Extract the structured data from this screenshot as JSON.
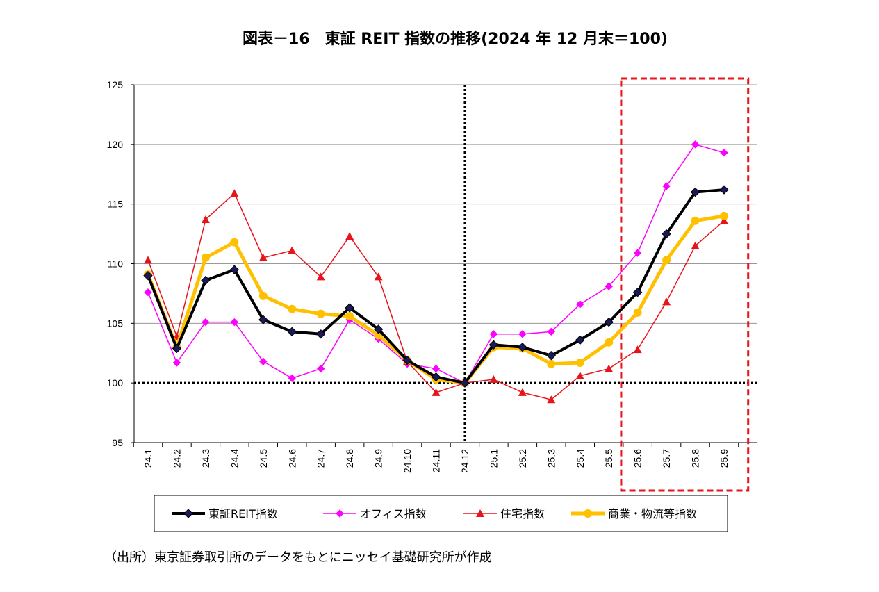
{
  "chart_data": {
    "type": "line",
    "title": "図表－16　東証 REIT 指数の推移(2024 年 12 月末＝100)",
    "source": "（出所）東京証券取引所のデータをもとにニッセイ基礎研究所が作成",
    "categories": [
      "24.1",
      "24.2",
      "24.3",
      "24.4",
      "24.5",
      "24.6",
      "24.7",
      "24.8",
      "24.9",
      "24.10",
      "24.11",
      "24.12",
      "25.1",
      "25.2",
      "25.3",
      "25.4",
      "25.5",
      "25.6",
      "25.7",
      "25.8",
      "25.9"
    ],
    "ylim": [
      95,
      125
    ],
    "yticks": [
      95,
      100,
      105,
      110,
      115,
      120,
      125
    ],
    "grid": "horizontal",
    "legend_position": "bottom",
    "reference_lines": {
      "y": 100,
      "x": "24.12"
    },
    "highlight_range": [
      "25.6",
      "25.9"
    ],
    "series": [
      {
        "name": "東証REIT指数",
        "color": "#000000",
        "marker": "diamond",
        "marker_color": "#1a1a5a",
        "values": [
          109.0,
          102.9,
          108.6,
          109.5,
          105.3,
          104.3,
          104.1,
          106.3,
          104.5,
          101.9,
          100.5,
          100.0,
          103.2,
          103.0,
          102.3,
          103.6,
          105.1,
          107.6,
          112.5,
          116.0,
          116.2
        ]
      },
      {
        "name": "オフィス指数",
        "color": "#ff00ff",
        "marker": "diamond",
        "values": [
          107.6,
          101.7,
          105.1,
          105.1,
          101.8,
          100.4,
          101.2,
          105.3,
          103.7,
          101.6,
          101.2,
          100.0,
          104.1,
          104.1,
          104.3,
          106.6,
          108.1,
          110.9,
          116.5,
          120.0,
          119.3
        ]
      },
      {
        "name": "住宅指数",
        "color": "#e8141c",
        "marker": "triangle",
        "values": [
          110.3,
          103.9,
          113.7,
          115.9,
          110.5,
          111.1,
          108.9,
          112.3,
          108.9,
          101.8,
          99.2,
          100.0,
          100.3,
          99.2,
          98.6,
          100.6,
          101.2,
          102.8,
          106.8,
          111.5,
          113.6
        ]
      },
      {
        "name": "商業・物流等指数",
        "color": "#ffc000",
        "marker": "circle",
        "values": [
          109.1,
          103.0,
          110.5,
          111.8,
          107.3,
          106.2,
          105.8,
          105.6,
          104.0,
          101.9,
          100.3,
          100.0,
          103.0,
          102.9,
          101.6,
          101.7,
          103.4,
          105.9,
          110.3,
          113.6,
          114.0
        ]
      }
    ]
  }
}
